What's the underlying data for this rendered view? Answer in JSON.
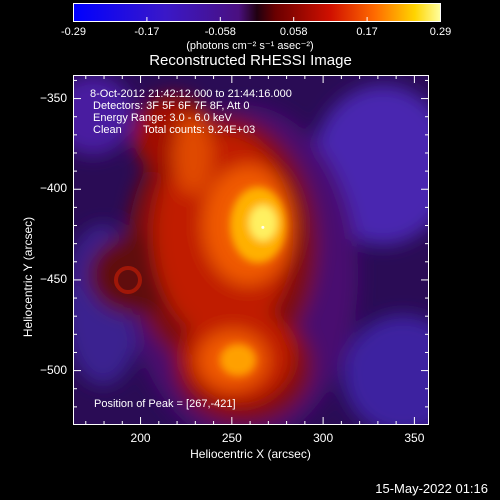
{
  "colorbar": {
    "ticks": [
      "-0.29",
      "-0.17",
      "-0.058",
      "0.058",
      "0.17",
      "0.29"
    ],
    "units_line": "(photons cm⁻² s⁻¹ asec⁻²)"
  },
  "chart_data": {
    "type": "heatmap",
    "title": "Reconstructed RHESSI Image",
    "xlabel": "Heliocentric X (arcsec)",
    "ylabel": "Heliocentric Y (arcsec)",
    "xlim": [
      163,
      358
    ],
    "ylim": [
      -530,
      -337
    ],
    "xticks": [
      200,
      250,
      300,
      350
    ],
    "yticks": [
      -350,
      -400,
      -450,
      -500
    ],
    "color_range": [
      -0.29,
      0.29
    ],
    "peak": {
      "x": 267,
      "y": -421
    },
    "annotations": {
      "time_range": "8-Oct-2012 21:42:12.000 to 21:44:16.000",
      "detectors": "Detectors: 3F 5F 6F 7F 8F, Att 0",
      "energy": "Energy Range: 3.0 - 6.0 keV",
      "clean": "Clean",
      "total_counts": "Total counts: 9.24E+03",
      "peak_label": "Position of Peak = [267,-421]"
    }
  },
  "timestamp": "15-May-2022 01:16"
}
